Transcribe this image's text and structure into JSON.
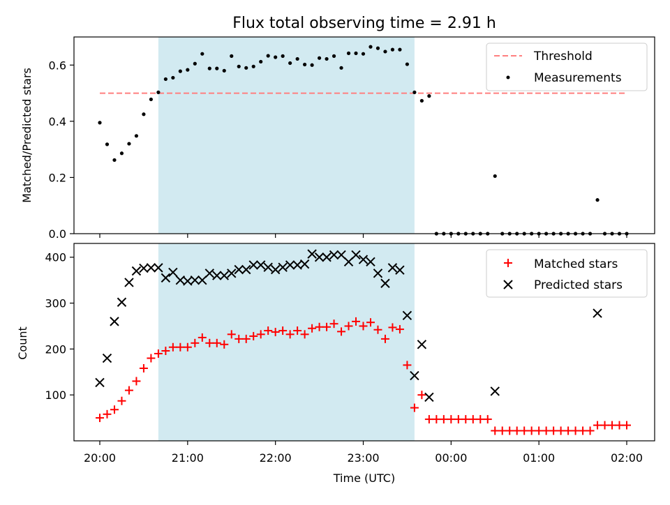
{
  "chart_data": {
    "type": "scatter",
    "title": "Flux total observing time = 2.91 h",
    "xlabel": "Time (UTC)",
    "x_ticks": [
      "20:00",
      "21:00",
      "22:00",
      "23:00",
      "00:00",
      "01:00",
      "02:00"
    ],
    "shaded_interval": {
      "start": "20:40",
      "end": "23:35",
      "color": "#add8e6"
    },
    "panels": [
      {
        "id": "ratio",
        "ylabel": "Matched/Predicted stars",
        "ylim": [
          0,
          0.7
        ],
        "y_ticks": [
          "0.0",
          "0.2",
          "0.4",
          "0.6"
        ],
        "legend_position": "upper right",
        "series": [
          {
            "name": "Threshold",
            "kind": "line",
            "style": "dashed",
            "color": "#ff7f7f",
            "x": [
              "20:00",
              "02:00"
            ],
            "y": [
              0.5,
              0.5
            ]
          },
          {
            "name": "Measurements",
            "kind": "scatter",
            "marker": "dot",
            "color": "#000000",
            "x": [
              "20:00",
              "20:05",
              "20:10",
              "20:15",
              "20:20",
              "20:25",
              "20:30",
              "20:35",
              "20:40",
              "20:45",
              "20:50",
              "20:55",
              "21:00",
              "21:05",
              "21:10",
              "21:15",
              "21:20",
              "21:25",
              "21:30",
              "21:35",
              "21:40",
              "21:45",
              "21:50",
              "21:55",
              "22:00",
              "22:05",
              "22:10",
              "22:15",
              "22:20",
              "22:25",
              "22:30",
              "22:35",
              "22:40",
              "22:45",
              "22:50",
              "22:55",
              "23:00",
              "23:05",
              "23:10",
              "23:15",
              "23:20",
              "23:25",
              "23:30",
              "23:35",
              "23:40",
              "23:45",
              "23:50",
              "23:55",
              "00:00",
              "00:05",
              "00:10",
              "00:15",
              "00:20",
              "00:25",
              "00:30",
              "00:35",
              "00:40",
              "00:45",
              "00:50",
              "00:55",
              "01:00",
              "01:05",
              "01:10",
              "01:15",
              "01:20",
              "01:25",
              "01:30",
              "01:35",
              "01:40",
              "01:45",
              "01:50",
              "01:55",
              "02:00"
            ],
            "y": [
              0.395,
              0.318,
              0.262,
              0.286,
              0.32,
              0.348,
              0.425,
              0.478,
              0.503,
              0.55,
              0.555,
              0.578,
              0.583,
              0.605,
              0.64,
              0.588,
              0.588,
              0.58,
              0.632,
              0.595,
              0.59,
              0.595,
              0.612,
              0.633,
              0.628,
              0.632,
              0.607,
              0.622,
              0.602,
              0.6,
              0.625,
              0.622,
              0.632,
              0.59,
              0.642,
              0.642,
              0.64,
              0.665,
              0.66,
              0.648,
              0.655,
              0.655,
              0.603,
              0.503,
              0.473,
              0.49,
              0.0,
              0.0,
              0.0,
              0.0,
              0.0,
              0.0,
              0.0,
              0.0,
              0.205,
              0.0,
              0.0,
              0.0,
              0.0,
              0.0,
              0.0,
              0.0,
              0.0,
              0.0,
              0.0,
              0.0,
              0.0,
              0.0,
              0.12,
              0.0,
              0.0,
              0.0,
              0.0
            ]
          }
        ]
      },
      {
        "id": "counts",
        "ylabel": "Count",
        "ylim": [
          0,
          430
        ],
        "y_ticks": [
          "100",
          "200",
          "300",
          "400"
        ],
        "legend_position": "upper right",
        "series": [
          {
            "name": "Matched stars",
            "kind": "scatter",
            "marker": "plus",
            "color": "#ff0000",
            "x": [
              "20:00",
              "20:05",
              "20:10",
              "20:15",
              "20:20",
              "20:25",
              "20:30",
              "20:35",
              "20:40",
              "20:45",
              "20:50",
              "20:55",
              "21:00",
              "21:05",
              "21:10",
              "21:15",
              "21:20",
              "21:25",
              "21:30",
              "21:35",
              "21:40",
              "21:45",
              "21:50",
              "21:55",
              "22:00",
              "22:05",
              "22:10",
              "22:15",
              "22:20",
              "22:25",
              "22:30",
              "22:35",
              "22:40",
              "22:45",
              "22:50",
              "22:55",
              "23:00",
              "23:05",
              "23:10",
              "23:15",
              "23:20",
              "23:25",
              "23:30",
              "23:35",
              "23:40",
              "23:45",
              "23:50",
              "23:55",
              "00:00",
              "00:05",
              "00:10",
              "00:15",
              "00:20",
              "00:25",
              "00:30",
              "00:35",
              "00:40",
              "00:45",
              "00:50",
              "00:55",
              "01:00",
              "01:05",
              "01:10",
              "01:15",
              "01:20",
              "01:25",
              "01:30",
              "01:35",
              "01:40",
              "01:45",
              "01:50",
              "01:55",
              "02:00"
            ],
            "y": [
              50,
              58,
              68,
              87,
              110,
              130,
              158,
              180,
              190,
              196,
              204,
              204,
              204,
              213,
              225,
              213,
              213,
              210,
              232,
              222,
              222,
              228,
              232,
              240,
              237,
              240,
              232,
              240,
              232,
              245,
              248,
              248,
              255,
              238,
              250,
              260,
              250,
              258,
              242,
              222,
              247,
              243,
              165,
              72,
              100,
              47,
              47,
              47,
              47,
              47,
              47,
              47,
              47,
              47,
              22,
              22,
              22,
              22,
              22,
              22,
              22,
              22,
              22,
              22,
              22,
              22,
              22,
              22,
              34,
              34,
              34,
              34,
              34
            ]
          },
          {
            "name": "Predicted stars",
            "kind": "scatter",
            "marker": "x",
            "color": "#000000",
            "x": [
              "20:00",
              "20:05",
              "20:10",
              "20:15",
              "20:20",
              "20:25",
              "20:30",
              "20:35",
              "20:40",
              "20:45",
              "20:50",
              "20:55",
              "21:00",
              "21:05",
              "21:10",
              "21:15",
              "21:20",
              "21:25",
              "21:30",
              "21:35",
              "21:40",
              "21:45",
              "21:50",
              "21:55",
              "22:00",
              "22:05",
              "22:10",
              "22:15",
              "22:20",
              "22:25",
              "22:30",
              "22:35",
              "22:40",
              "22:45",
              "22:50",
              "22:55",
              "23:00",
              "23:05",
              "23:10",
              "23:15",
              "23:20",
              "23:25",
              "23:30",
              "23:35",
              "23:40",
              "23:45",
              "00:30",
              "01:40"
            ],
            "y": [
              127,
              180,
              260,
              302,
              345,
              370,
              376,
              377,
              377,
              355,
              367,
              350,
              348,
              350,
              350,
              365,
              360,
              360,
              365,
              373,
              373,
              383,
              383,
              378,
              373,
              378,
              383,
              383,
              385,
              407,
              400,
              400,
              405,
              405,
              390,
              405,
              395,
              390,
              365,
              343,
              377,
              372,
              273,
              142,
              210,
              95,
              108,
              278
            ]
          }
        ]
      }
    ]
  }
}
